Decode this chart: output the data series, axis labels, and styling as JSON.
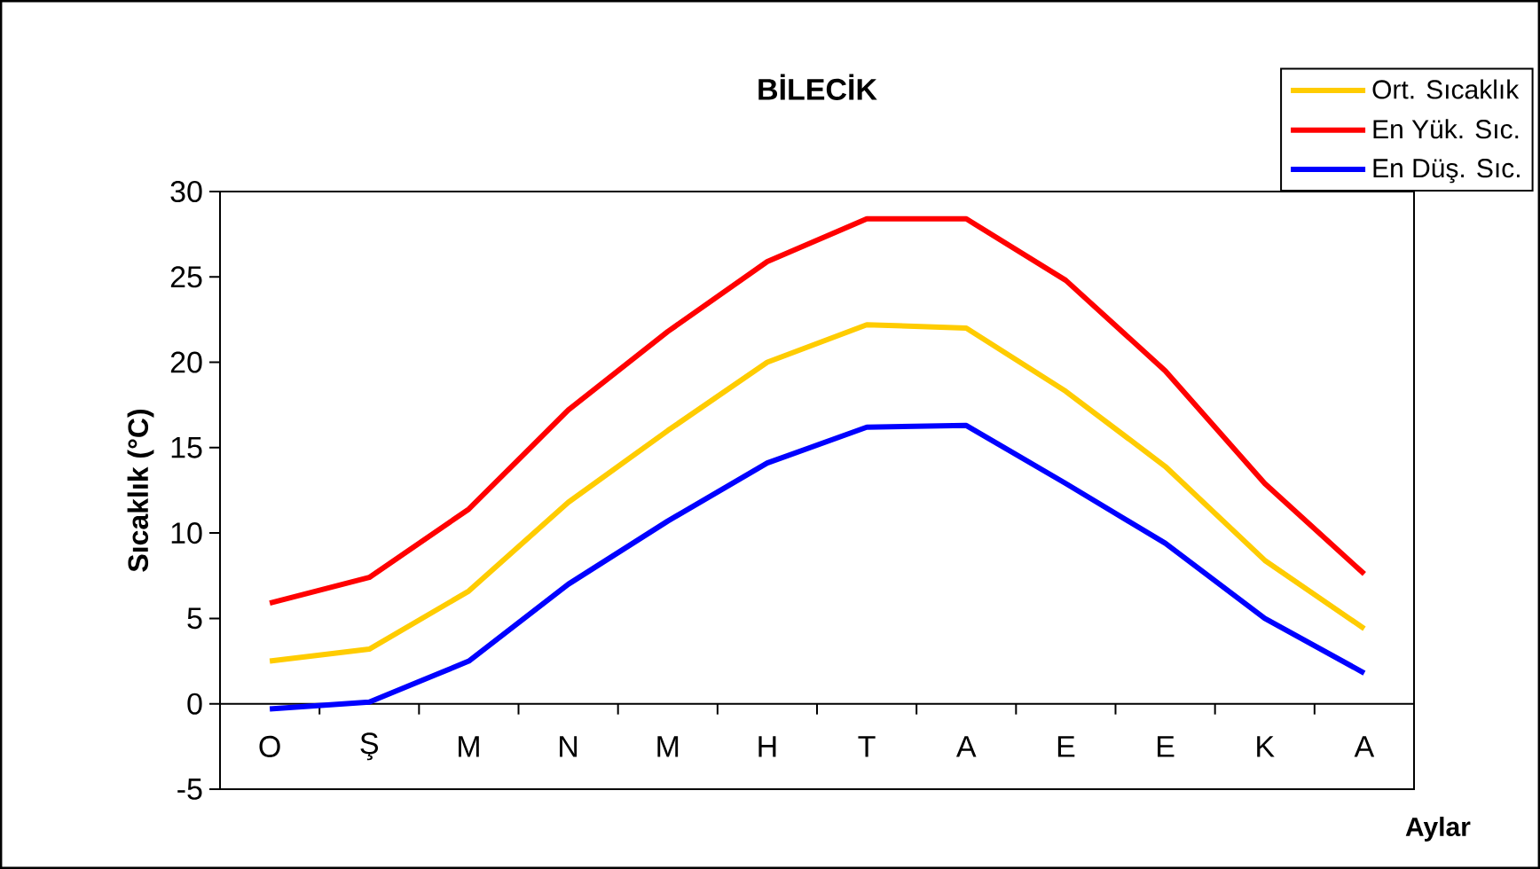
{
  "chart_data": {
    "type": "line",
    "title": "BİLECİK",
    "xlabel": "Aylar",
    "ylabel": "Sıcaklık (°C)",
    "categories": [
      "O",
      "Ş",
      "M",
      "N",
      "M",
      "H",
      "T",
      "A",
      "E",
      "E",
      "K",
      "A"
    ],
    "series": [
      {
        "name": "Ort. Sıcaklık",
        "color": "#ffcc00",
        "values": [
          2.5,
          3.2,
          6.6,
          11.8,
          16.0,
          20.0,
          22.2,
          22.0,
          18.3,
          13.9,
          8.4,
          4.4
        ]
      },
      {
        "name": "En Yük. Sıc.",
        "color": "#ff0000",
        "values": [
          5.9,
          7.4,
          11.4,
          17.2,
          21.8,
          25.9,
          28.4,
          28.4,
          24.8,
          19.5,
          12.9,
          7.6
        ]
      },
      {
        "name": "En Düş. Sıc.",
        "color": "#0000ff",
        "values": [
          -0.3,
          0.1,
          2.5,
          7.0,
          10.7,
          14.1,
          16.2,
          16.3,
          12.9,
          9.4,
          5.0,
          1.8
        ]
      }
    ],
    "ylim": [
      -5,
      30
    ],
    "yticks": [
      -5,
      0,
      5,
      10,
      15,
      20,
      25,
      30
    ],
    "grid": false,
    "legend": "top right"
  }
}
